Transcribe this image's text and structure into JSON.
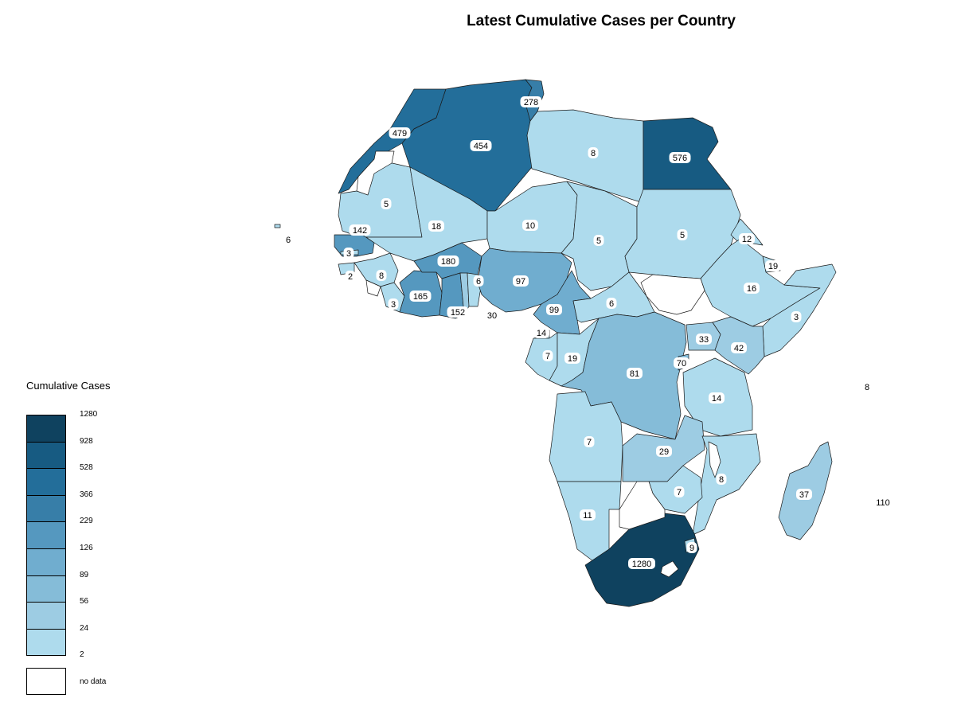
{
  "title": "Latest Cumulative Cases per Country",
  "legend": {
    "title": "Cumulative Cases",
    "breaks": [
      "1280",
      "928",
      "528",
      "366",
      "229",
      "126",
      "89",
      "56",
      "24",
      "2"
    ],
    "colors": [
      "#0f425f",
      "#175b82",
      "#236e9a",
      "#377ea8",
      "#5598bf",
      "#70adcf",
      "#85bcd8",
      "#9dcce3",
      "#aedbed"
    ],
    "no_data_label": "no data",
    "no_data_color": "#ffffff"
  },
  "countries": [
    {
      "name": "Morocco",
      "cases": 479,
      "label": "479"
    },
    {
      "name": "Algeria",
      "cases": 454,
      "label": "454"
    },
    {
      "name": "Tunisia",
      "cases": 278,
      "label": "278"
    },
    {
      "name": "Libya",
      "cases": 8,
      "label": "8"
    },
    {
      "name": "Egypt",
      "cases": 576,
      "label": "576"
    },
    {
      "name": "Mauritania",
      "cases": 5,
      "label": "5"
    },
    {
      "name": "Mali",
      "cases": 18,
      "label": "18"
    },
    {
      "name": "Niger",
      "cases": 10,
      "label": "10"
    },
    {
      "name": "Chad",
      "cases": 5,
      "label": "5"
    },
    {
      "name": "Sudan",
      "cases": 5,
      "label": "5"
    },
    {
      "name": "Eritrea",
      "cases": 12,
      "label": "12"
    },
    {
      "name": "Djibouti",
      "cases": 19,
      "label": "19"
    },
    {
      "name": "Ethiopia",
      "cases": 16,
      "label": "16"
    },
    {
      "name": "Somalia",
      "cases": 3,
      "label": "3"
    },
    {
      "name": "Senegal",
      "cases": 142,
      "label": "142"
    },
    {
      "name": "Gambia",
      "cases": 3,
      "label": "3"
    },
    {
      "name": "Guinea-Bissau",
      "cases": 2,
      "label": "2"
    },
    {
      "name": "Guinea",
      "cases": 8,
      "label": "8"
    },
    {
      "name": "Liberia",
      "cases": 3,
      "label": "3"
    },
    {
      "name": "Cote d'Ivoire",
      "cases": 165,
      "label": "165"
    },
    {
      "name": "Burkina Faso",
      "cases": 180,
      "label": "180"
    },
    {
      "name": "Ghana",
      "cases": 152,
      "label": "152"
    },
    {
      "name": "Togo",
      "cases": 30,
      "label": "30"
    },
    {
      "name": "Benin",
      "cases": 6,
      "label": "6"
    },
    {
      "name": "Nigeria",
      "cases": 97,
      "label": "97"
    },
    {
      "name": "Cameroon",
      "cases": 99,
      "label": "99"
    },
    {
      "name": "Central African Republic",
      "cases": 6,
      "label": "6"
    },
    {
      "name": "Equatorial Guinea",
      "cases": 14,
      "label": "14"
    },
    {
      "name": "Gabon",
      "cases": 7,
      "label": "7"
    },
    {
      "name": "Congo",
      "cases": 19,
      "label": "19"
    },
    {
      "name": "DR Congo",
      "cases": 81,
      "label": "81"
    },
    {
      "name": "Uganda",
      "cases": 33,
      "label": "33"
    },
    {
      "name": "Kenya",
      "cases": 42,
      "label": "42"
    },
    {
      "name": "Rwanda",
      "cases": 70,
      "label": "70"
    },
    {
      "name": "Tanzania",
      "cases": 14,
      "label": "14"
    },
    {
      "name": "Angola",
      "cases": 7,
      "label": "7"
    },
    {
      "name": "Zambia",
      "cases": 29,
      "label": "29"
    },
    {
      "name": "Mozambique",
      "cases": 8,
      "label": "8"
    },
    {
      "name": "Zimbabwe",
      "cases": 7,
      "label": "7"
    },
    {
      "name": "Namibia",
      "cases": 11,
      "label": "11"
    },
    {
      "name": "South Africa",
      "cases": 1280,
      "label": "1280"
    },
    {
      "name": "Eswatini",
      "cases": 9,
      "label": "9"
    },
    {
      "name": "Madagascar",
      "cases": 37,
      "label": "37"
    },
    {
      "name": "Cabo Verde",
      "cases": 6,
      "label": "6"
    },
    {
      "name": "Seychelles",
      "cases": 8,
      "label": "8"
    },
    {
      "name": "Mauritius",
      "cases": 110,
      "label": "110"
    }
  ]
}
